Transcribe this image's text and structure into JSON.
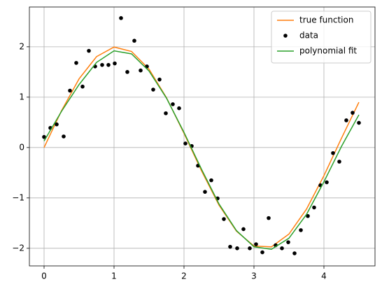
{
  "chart_data": {
    "type": "line",
    "xlim": [
      -0.21,
      4.73
    ],
    "ylim": [
      -2.35,
      2.79
    ],
    "xticks": [
      0,
      1,
      2,
      3,
      4
    ],
    "yticks": [
      {
        "value": -2,
        "label": "−2"
      },
      {
        "value": -1,
        "label": "−1"
      },
      0,
      1,
      2
    ],
    "grid": true,
    "legend": "upper right",
    "series": [
      {
        "name": "true function",
        "color": "#ff7f0e",
        "style": "line",
        "x": [
          0,
          0.25,
          0.5,
          0.75,
          1.0,
          1.25,
          1.5,
          1.75,
          2.0,
          2.25,
          2.5,
          2.75,
          3.0,
          3.25,
          3.5,
          3.75,
          4.0,
          4.25,
          4.5
        ],
        "values": [
          0,
          0.733,
          1.363,
          1.805,
          1.995,
          1.908,
          1.556,
          0.988,
          0.282,
          -0.462,
          -1.143,
          -1.661,
          -1.955,
          -1.972,
          -1.718,
          -1.224,
          -0.559,
          0.183,
          0.9
        ]
      },
      {
        "name": "data",
        "color": "#000000",
        "style": "marker",
        "x": [
          0,
          0.09,
          0.18,
          0.28,
          0.37,
          0.46,
          0.55,
          0.64,
          0.73,
          0.83,
          0.92,
          1.01,
          1.1,
          1.19,
          1.29,
          1.38,
          1.47,
          1.56,
          1.65,
          1.74,
          1.84,
          1.93,
          2.02,
          2.11,
          2.2,
          2.3,
          2.39,
          2.48,
          2.57,
          2.66,
          2.76,
          2.85,
          2.94,
          3.03,
          3.12,
          3.21,
          3.31,
          3.4,
          3.49,
          3.58,
          3.67,
          3.77,
          3.86,
          3.95,
          4.04,
          4.13,
          4.22,
          4.32,
          4.41,
          4.5
        ],
        "values": [
          0.21,
          0.39,
          0.46,
          0.22,
          1.13,
          1.68,
          1.21,
          1.92,
          1.61,
          1.64,
          1.64,
          1.67,
          2.57,
          1.5,
          2.12,
          1.53,
          1.61,
          1.15,
          1.35,
          0.68,
          0.86,
          0.78,
          0.08,
          0.03,
          -0.36,
          -0.88,
          -0.65,
          -1.01,
          -1.42,
          -1.97,
          -2.0,
          -1.62,
          -2.0,
          -1.92,
          -2.08,
          -1.4,
          -1.94,
          -2.0,
          -1.88,
          -2.1,
          -1.64,
          -1.36,
          -1.19,
          -0.75,
          -0.69,
          -0.11,
          -0.28,
          0.54,
          0.69,
          0.49
        ]
      },
      {
        "name": "polynomial fit",
        "color": "#2ca02c",
        "style": "line",
        "x": [
          0,
          0.25,
          0.5,
          0.75,
          1.0,
          1.25,
          1.5,
          1.75,
          2.0,
          2.25,
          2.5,
          2.75,
          3.0,
          3.25,
          3.5,
          3.75,
          4.0,
          4.25,
          4.5
        ],
        "values": [
          0.13,
          0.72,
          1.25,
          1.69,
          1.92,
          1.86,
          1.52,
          0.98,
          0.3,
          -0.43,
          -1.12,
          -1.65,
          -1.97,
          -2.02,
          -1.8,
          -1.33,
          -0.68,
          0.02,
          0.65
        ]
      }
    ]
  }
}
